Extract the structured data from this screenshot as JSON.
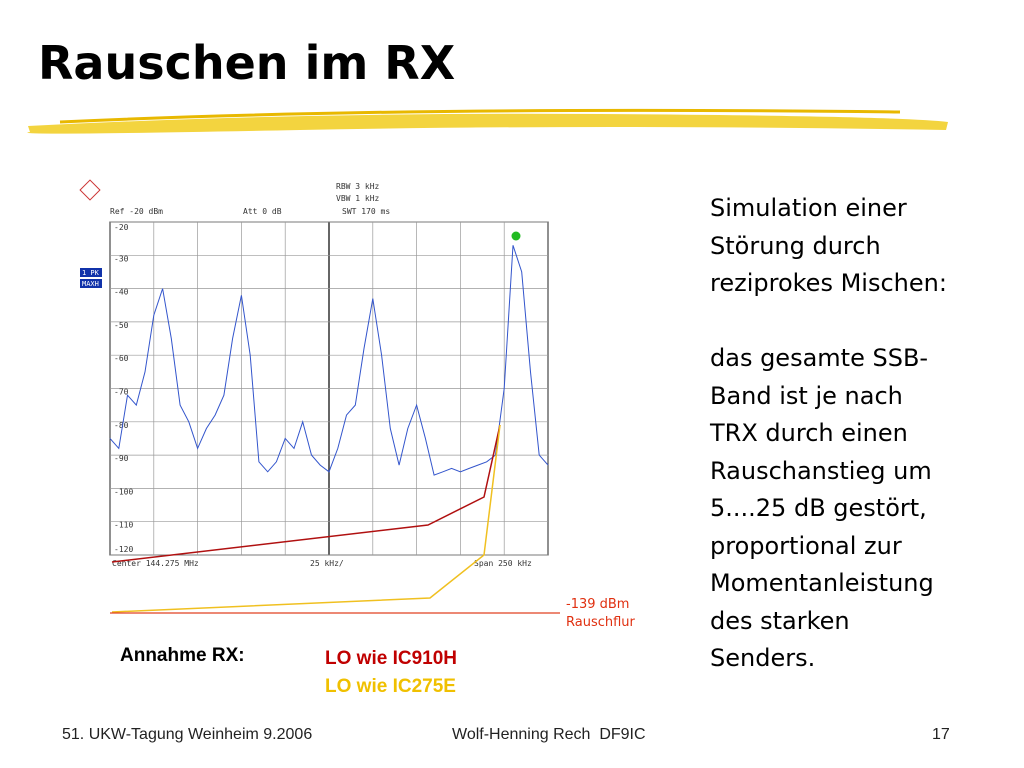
{
  "title": "Rauschen im RX",
  "spectrum": {
    "header": {
      "rbw": "RBW 3 kHz",
      "vbw": "VBW 1 kHz",
      "swt": "SWT 170 ms",
      "ref": "Ref -20 dBm",
      "att": "Att  0 dB"
    },
    "trace_labels": [
      "1 PK",
      "MAXH"
    ],
    "footer": {
      "center": "Center 144.275 MHz",
      "div": "25 kHz/",
      "span": "Span 250 kHz"
    },
    "ylim": [
      -120,
      -20
    ],
    "yticks": [
      -20,
      -30,
      -40,
      -50,
      -60,
      -70,
      -80,
      -90,
      -100,
      -110,
      -120
    ],
    "xlim": [
      144.15,
      144.4
    ],
    "trace": {
      "x": [
        144.15,
        144.155,
        144.16,
        144.165,
        144.17,
        144.175,
        144.18,
        144.185,
        144.19,
        144.195,
        144.2,
        144.205,
        144.21,
        144.215,
        144.22,
        144.225,
        144.23,
        144.235,
        144.24,
        144.245,
        144.25,
        144.255,
        144.26,
        144.265,
        144.27,
        144.275,
        144.28,
        144.285,
        144.29,
        144.295,
        144.3,
        144.305,
        144.31,
        144.315,
        144.32,
        144.325,
        144.33,
        144.335,
        144.34,
        144.345,
        144.35,
        144.355,
        144.36,
        144.365,
        144.37,
        144.375,
        144.38,
        144.385,
        144.39,
        144.395,
        144.4
      ],
      "values": [
        -85,
        -88,
        -72,
        -75,
        -65,
        -48,
        -40,
        -55,
        -75,
        -80,
        -88,
        -82,
        -78,
        -72,
        -55,
        -42,
        -60,
        -92,
        -95,
        -92,
        -85,
        -88,
        -80,
        -90,
        -93,
        -95,
        -88,
        -78,
        -75,
        -58,
        -43,
        -60,
        -82,
        -93,
        -82,
        -75,
        -85,
        -96,
        -95,
        -94,
        -95,
        -94,
        -93,
        -92,
        -90,
        -70,
        -27,
        -35,
        -65,
        -90,
        -93
      ],
      "color": "#3355cc"
    }
  },
  "noise_floor": [
    "-139 dBm",
    "Rauschflur"
  ],
  "assumption": {
    "label": "Annahme RX:",
    "lines": [
      "LO wie IC910H",
      "LO wie IC275E"
    ]
  },
  "text": {
    "para1": [
      "Simulation einer",
      "Störung durch",
      "reziprokes Mischen:"
    ],
    "para2": [
      "das gesamte SSB-",
      "Band ist je nach",
      "TRX durch einen",
      "Rauschanstieg um",
      "5....25 dB gestört,",
      "proportional zur",
      "Momentanleistung",
      "des starken",
      "Senders."
    ]
  },
  "footer": {
    "left": "51. UKW-Tagung Weinheim 9.2006",
    "center": "Wolf-Henning Rech  DF9IC",
    "page": "17"
  }
}
